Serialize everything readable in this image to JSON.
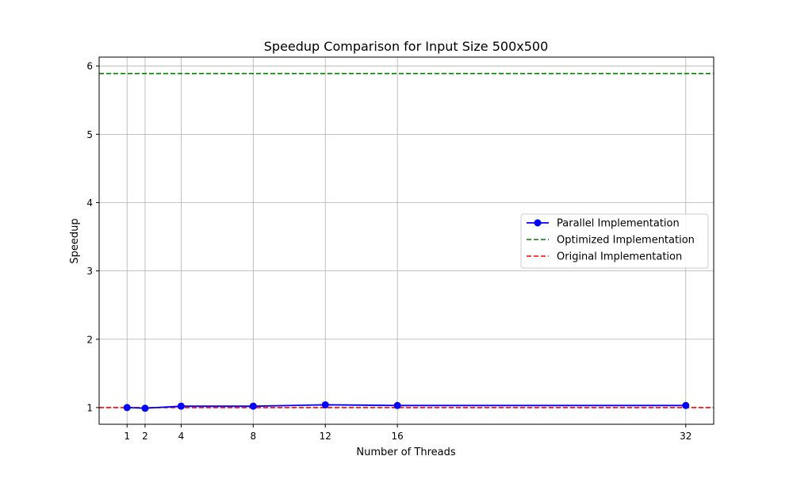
{
  "chart_data": {
    "type": "line",
    "title": "Speedup Comparison for Input Size 500x500",
    "xlabel": "Number of Threads",
    "ylabel": "Speedup",
    "xlim": [
      -0.55,
      33.55
    ],
    "ylim": [
      0.755,
      6.13
    ],
    "xticks": [
      1,
      2,
      4,
      8,
      12,
      16,
      32
    ],
    "yticks": [
      1,
      2,
      3,
      4,
      5,
      6
    ],
    "grid": true,
    "legend_position": "center-right",
    "series": [
      {
        "name": "Parallel Implementation",
        "style": "solid-line-circle-markers",
        "color": "#0000ff",
        "x": [
          1,
          2,
          4,
          8,
          12,
          16,
          32
        ],
        "y": [
          1.0,
          0.99,
          1.02,
          1.02,
          1.04,
          1.03,
          1.03
        ]
      },
      {
        "name": "Optimized Implementation",
        "style": "dashed-horizontal-line",
        "color": "#008000",
        "y": 5.89
      },
      {
        "name": "Original Implementation",
        "style": "dashed-horizontal-line",
        "color": "#ff0000",
        "y": 1.0
      }
    ]
  }
}
